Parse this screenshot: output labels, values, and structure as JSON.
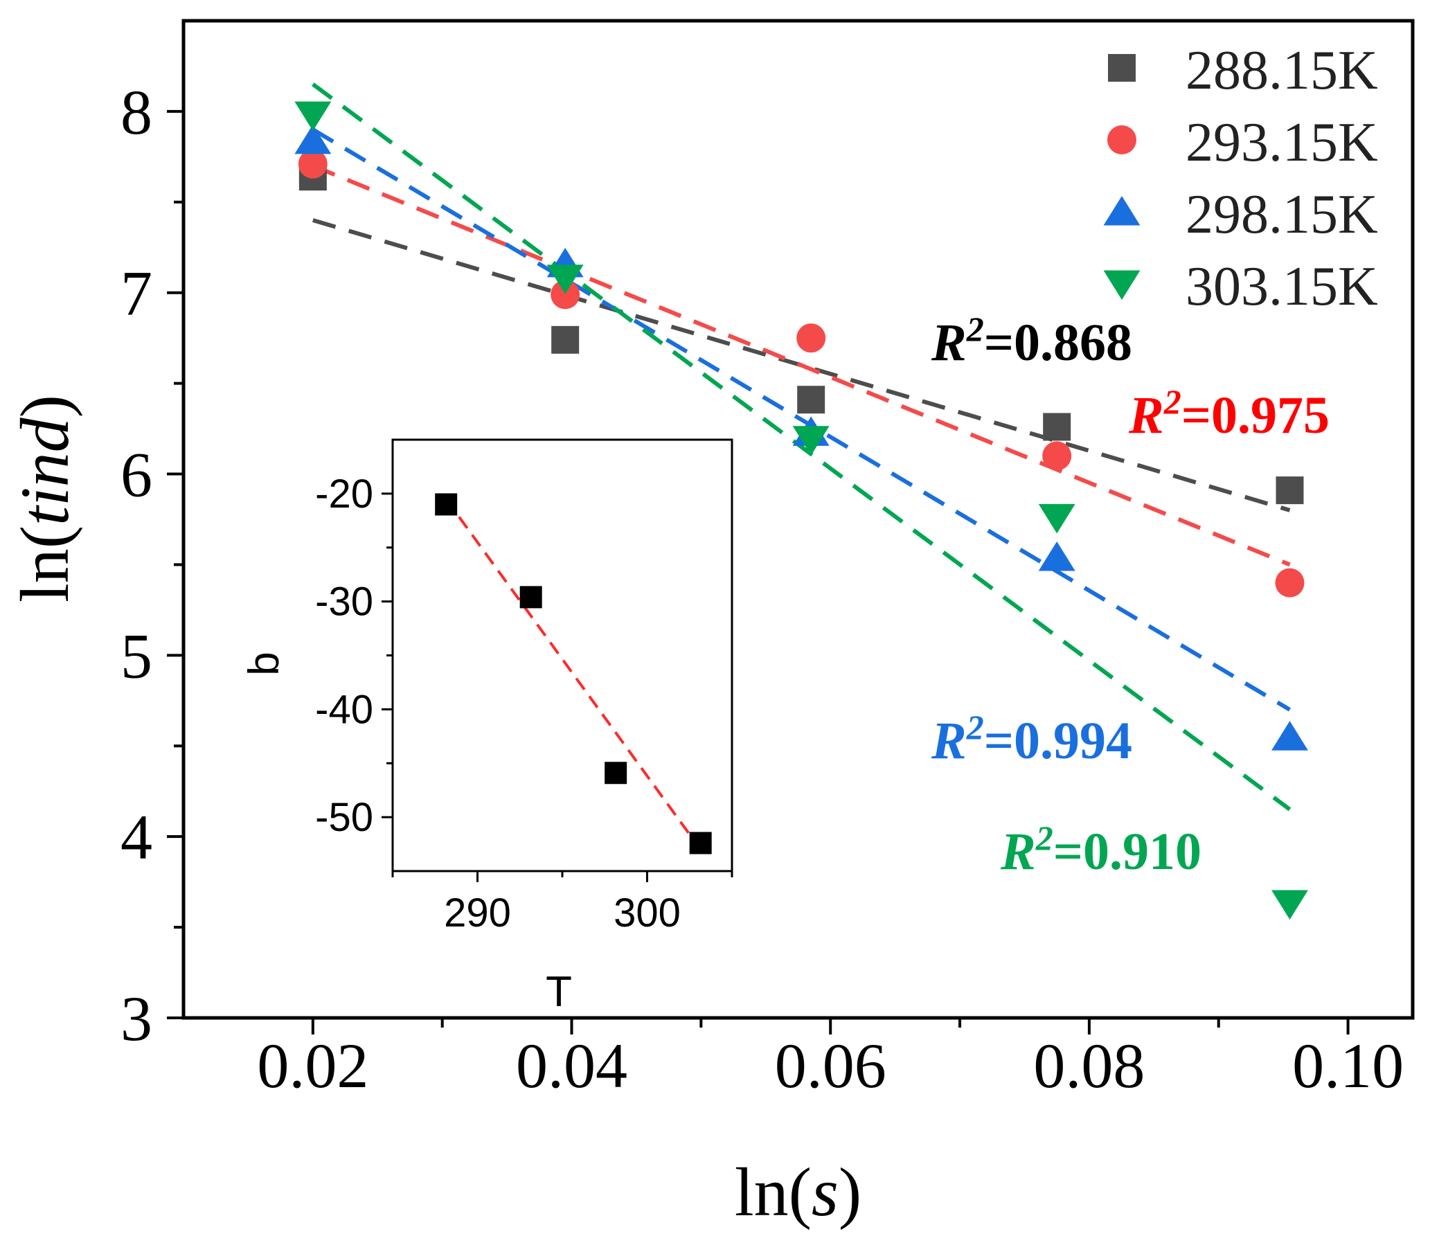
{
  "chart_data": [
    {
      "type": "scatter",
      "title": "",
      "xlabel_prefix": "ln(",
      "xlabel_var": "s",
      "xlabel_suffix": ")",
      "ylabel_prefix": "ln(",
      "ylabel_var": "tind",
      "ylabel_suffix": ")",
      "xlim": [
        0.01,
        0.105
      ],
      "ylim": [
        3,
        8.5
      ],
      "xticks": [
        0.02,
        0.04,
        0.06,
        0.08,
        0.1
      ],
      "xtick_labels": [
        "0.02",
        "0.04",
        "0.06",
        "0.08",
        "0.10"
      ],
      "yticks": [
        3,
        4,
        5,
        6,
        7,
        8
      ],
      "ytick_labels": [
        "3",
        "4",
        "5",
        "6",
        "7",
        "8"
      ],
      "legend_position": "top-right",
      "x": [
        0.02,
        0.0395,
        0.0585,
        0.0775,
        0.0955
      ],
      "series": [
        {
          "name": "288.15K",
          "marker": "square",
          "color": "#4d4d4d",
          "y": [
            7.64,
            6.74,
            6.41,
            6.26,
            5.91
          ],
          "fit": {
            "x": [
              0.02,
              0.0955
            ],
            "y": [
              7.4,
              5.8
            ],
            "r2_label": "=0.868",
            "r2_color": "#000000"
          }
        },
        {
          "name": "293.15K",
          "marker": "circle",
          "color": "#f54a4a",
          "y": [
            7.71,
            6.99,
            6.75,
            6.1,
            5.4
          ],
          "fit": {
            "x": [
              0.02,
              0.0955
            ],
            "y": [
              7.7,
              5.5
            ],
            "r2_label": "=0.975",
            "r2_color": "#ff0000"
          }
        },
        {
          "name": "298.15K",
          "marker": "triangle-up",
          "color": "#1a6fdf",
          "y": [
            7.84,
            7.16,
            6.23,
            5.54,
            4.55
          ],
          "fit": {
            "x": [
              0.02,
              0.0955
            ],
            "y": [
              7.9,
              4.7
            ],
            "r2_label": "=0.994",
            "r2_color": "#1a6fdf"
          }
        },
        {
          "name": "303.15K",
          "marker": "triangle-down",
          "color": "#00a651",
          "y": [
            7.98,
            7.08,
            6.19,
            5.76,
            3.63
          ],
          "fit": {
            "x": [
              0.02,
              0.0955
            ],
            "y": [
              8.15,
              4.15
            ],
            "r2_label": "=0.910",
            "r2_color": "#00a651"
          }
        }
      ],
      "r2_prefix": "R",
      "r2_superscript": "2"
    },
    {
      "type": "scatter",
      "title": "",
      "xlabel": "T",
      "ylabel": "b",
      "xlim": [
        285,
        305
      ],
      "ylim": [
        -55,
        -15
      ],
      "xticks": [
        290,
        300
      ],
      "xtick_labels": [
        "290",
        "300"
      ],
      "yticks": [
        -20,
        -30,
        -40,
        -50
      ],
      "ytick_labels": [
        "-20",
        "-30",
        "-40",
        "-50"
      ],
      "x": [
        288.15,
        293.15,
        298.15,
        303.15
      ],
      "y": [
        -21.0,
        -29.6,
        -45.9,
        -52.4
      ],
      "marker_color": "#000000",
      "fit": {
        "x": [
          288.15,
          303.15
        ],
        "y": [
          -20.5,
          -53.0
        ],
        "color": "#ff2a2a"
      }
    }
  ]
}
